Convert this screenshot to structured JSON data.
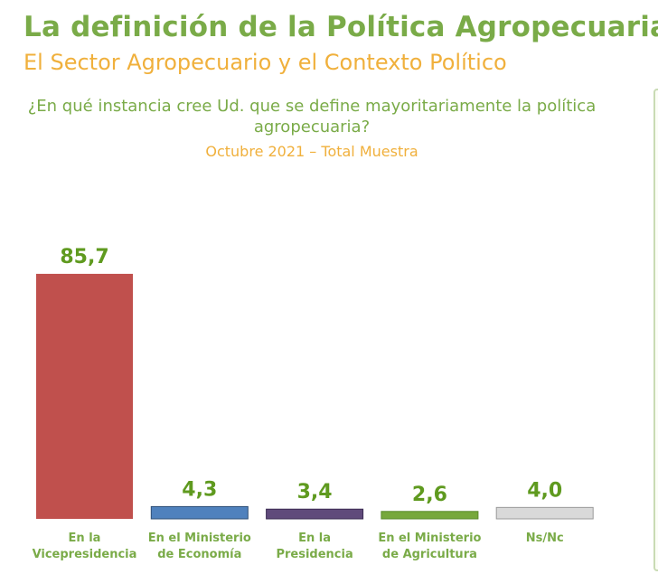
{
  "header": {
    "title": "La definición de la Política Agropecuaria",
    "subtitle": "El Sector Agropecuario y el Contexto Político"
  },
  "chart_data": {
    "type": "bar",
    "title": "¿En qué instancia cree Ud. que se define mayoritariamente la política agropecuaria?",
    "subtitle": "Octubre 2021 – Total Muestra",
    "xlabel": "",
    "ylabel": "",
    "ylim": [
      0,
      100
    ],
    "grid": false,
    "categories": [
      [
        "En la",
        "Vicepresidencia"
      ],
      [
        "En el Ministerio",
        "de Economía"
      ],
      [
        "En la",
        "Presidencia"
      ],
      [
        "En el Ministerio",
        "de Agricultura"
      ],
      [
        "Ns/Nc"
      ]
    ],
    "values": [
      85.7,
      4.3,
      3.4,
      2.6,
      4.0
    ],
    "value_labels": [
      "85,7",
      "4,3",
      "3,4",
      "2,6",
      "4,0"
    ],
    "colors": [
      "#c0504d",
      "#4f81bd",
      "#604a7b",
      "#77a83c",
      "#d9d9d9"
    ]
  },
  "colors": {
    "title": "#7aab48",
    "accent": "#f0b03c",
    "value_label": "#5f9a1f"
  }
}
